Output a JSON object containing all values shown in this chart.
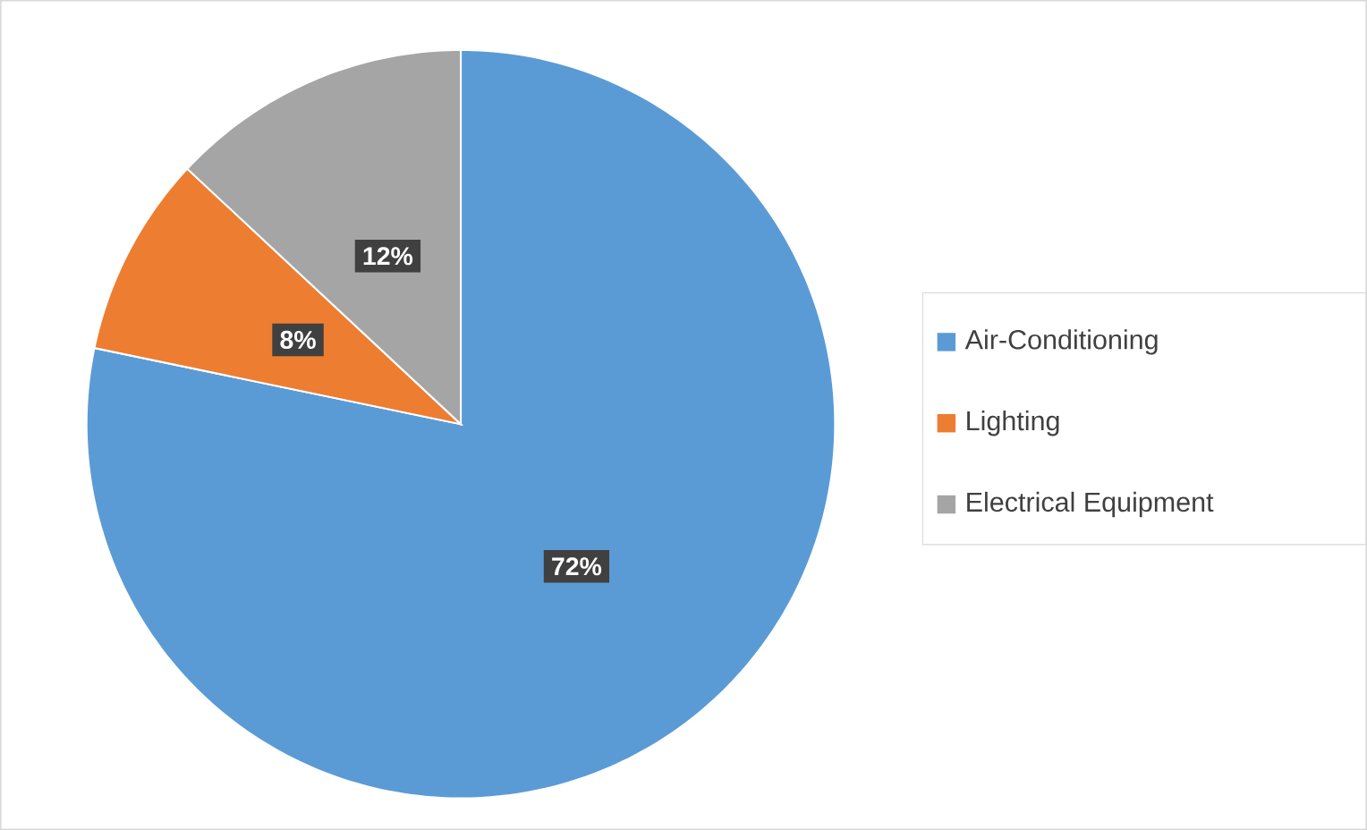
{
  "chart_data": {
    "type": "pie",
    "categories": [
      "Air-Conditioning",
      "Lighting",
      "Electrical Equipment"
    ],
    "values": [
      72,
      8,
      12
    ],
    "colors": [
      "#5b9bd5",
      "#ed7d31",
      "#a5a5a5"
    ],
    "value_labels": [
      "72%",
      "8%",
      "12%"
    ],
    "legend": "right"
  }
}
